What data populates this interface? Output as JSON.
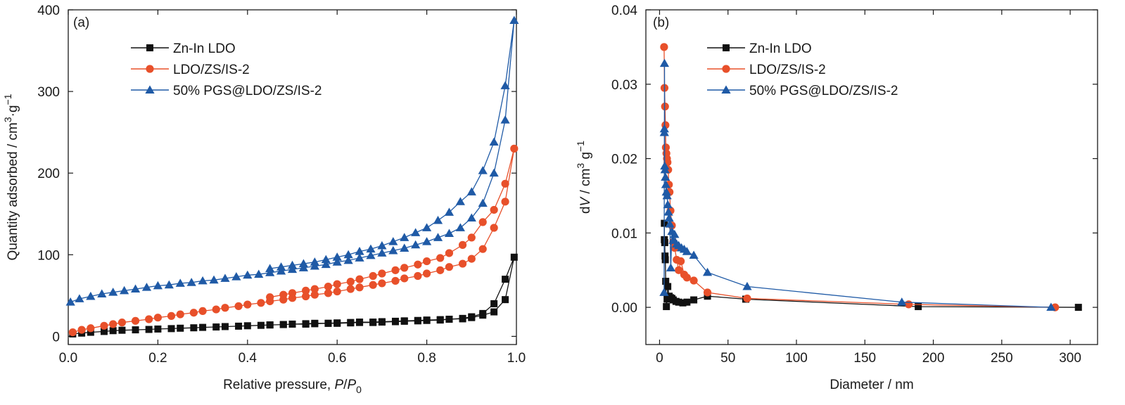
{
  "colors": {
    "black": "#111111",
    "orange": "#E8502A",
    "blue": "#1F5AA6",
    "axis": "#1a1a1a"
  },
  "markers": {
    "Zn-In LDO": "square",
    "LDO/ZS/IS-2": "circle",
    "50% PGS@LDO/ZS/IS-2": "triangle"
  },
  "chart_data": [
    {
      "panel": "(a)",
      "type": "line",
      "xlabel_text": "Relative pressure, ",
      "xlabel_var": "P",
      "xlabel_sep": "/",
      "xlabel_var2": "P",
      "xlabel_sub": "0",
      "ylabel_text": "Quantity adsorbed / cm",
      "ylabel_sup1": "3",
      "ylabel_mid": "·g",
      "ylabel_sup2": "−1",
      "xlim": [
        0,
        1.0
      ],
      "ylim": [
        -10,
        400
      ],
      "xticks": [
        0.0,
        0.2,
        0.4,
        0.6,
        0.8,
        1.0
      ],
      "xtick_labels": [
        "0.0",
        "0.2",
        "0.4",
        "0.6",
        "0.8",
        "1.0"
      ],
      "yticks": [
        0,
        100,
        200,
        300,
        400
      ],
      "ytick_labels": [
        "0",
        "100",
        "200",
        "300",
        "400"
      ],
      "legend_position": "top-left",
      "series": [
        {
          "name": "Zn-In LDO",
          "color": "black",
          "marker": "square",
          "x": [
            0.01,
            0.03,
            0.05,
            0.08,
            0.1,
            0.12,
            0.15,
            0.18,
            0.2,
            0.23,
            0.25,
            0.28,
            0.3,
            0.33,
            0.35,
            0.38,
            0.4,
            0.43,
            0.45,
            0.48,
            0.5,
            0.53,
            0.55,
            0.58,
            0.6,
            0.63,
            0.65,
            0.68,
            0.7,
            0.73,
            0.75,
            0.78,
            0.8,
            0.83,
            0.85,
            0.88,
            0.9,
            0.925,
            0.95,
            0.975,
            0.995,
            0.975,
            0.95,
            0.925,
            0.9,
            0.88,
            0.85,
            0.83,
            0.8,
            0.78,
            0.75,
            0.73,
            0.7,
            0.68,
            0.65,
            0.63,
            0.6,
            0.58,
            0.55,
            0.53,
            0.5,
            0.48,
            0.45
          ],
          "y": [
            3,
            4,
            5,
            6,
            7,
            7.5,
            8,
            8.5,
            9,
            9.5,
            10,
            10.5,
            11,
            11.5,
            12,
            12.5,
            13,
            13.5,
            14,
            14.5,
            15,
            15,
            15.5,
            16,
            16,
            16.5,
            17,
            17,
            17.5,
            18,
            18.5,
            19,
            19.5,
            20,
            21,
            22,
            24,
            28,
            40,
            70,
            97,
            45,
            30,
            26,
            23,
            21.5,
            21,
            20.5,
            20,
            19.5,
            19,
            18.5,
            18,
            17.5,
            17.5,
            17,
            16.5,
            16,
            16,
            15.5,
            15,
            14.5,
            14
          ]
        },
        {
          "name": "LDO/ZS/IS-2",
          "color": "orange",
          "marker": "circle",
          "x": [
            0.01,
            0.03,
            0.05,
            0.08,
            0.1,
            0.12,
            0.15,
            0.18,
            0.2,
            0.23,
            0.25,
            0.28,
            0.3,
            0.33,
            0.35,
            0.38,
            0.4,
            0.43,
            0.45,
            0.48,
            0.5,
            0.53,
            0.55,
            0.58,
            0.6,
            0.63,
            0.65,
            0.68,
            0.7,
            0.73,
            0.75,
            0.78,
            0.8,
            0.83,
            0.85,
            0.88,
            0.9,
            0.925,
            0.95,
            0.975,
            0.995,
            0.975,
            0.95,
            0.925,
            0.9,
            0.88,
            0.85,
            0.83,
            0.8,
            0.78,
            0.75,
            0.73,
            0.7,
            0.68,
            0.65,
            0.63,
            0.6,
            0.58,
            0.55,
            0.53,
            0.5,
            0.48,
            0.45
          ],
          "y": [
            5,
            8,
            10,
            13,
            15,
            17,
            19,
            21,
            23,
            25,
            27,
            29,
            31,
            33,
            35,
            37,
            39,
            41,
            43,
            45,
            47,
            49,
            51,
            53,
            55,
            58,
            60,
            63,
            65,
            68,
            71,
            74,
            77,
            81,
            85,
            89,
            95,
            107,
            133,
            165,
            230,
            187,
            155,
            140,
            121,
            112,
            102,
            96,
            92,
            88,
            84,
            81,
            77,
            74,
            70,
            67,
            64,
            61,
            58,
            56,
            53,
            51,
            48
          ]
        },
        {
          "name": "50% PGS@LDO/ZS/IS-2",
          "color": "blue",
          "marker": "triangle",
          "x": [
            0.005,
            0.025,
            0.05,
            0.075,
            0.1,
            0.125,
            0.15,
            0.175,
            0.2,
            0.225,
            0.25,
            0.275,
            0.3,
            0.325,
            0.35,
            0.375,
            0.4,
            0.425,
            0.45,
            0.475,
            0.5,
            0.525,
            0.55,
            0.575,
            0.6,
            0.625,
            0.65,
            0.675,
            0.7,
            0.725,
            0.75,
            0.775,
            0.8,
            0.825,
            0.85,
            0.875,
            0.9,
            0.925,
            0.95,
            0.975,
            0.995,
            0.975,
            0.95,
            0.925,
            0.9,
            0.875,
            0.85,
            0.825,
            0.8,
            0.775,
            0.75,
            0.725,
            0.7,
            0.675,
            0.65,
            0.625,
            0.6,
            0.575,
            0.55,
            0.525,
            0.5,
            0.475,
            0.45
          ],
          "y": [
            42,
            46,
            49,
            52,
            54,
            56,
            58,
            60,
            62,
            63,
            65,
            66,
            68,
            69,
            71,
            73,
            75,
            76,
            78,
            80,
            82,
            84,
            86,
            88,
            91,
            93,
            96,
            99,
            102,
            105,
            108,
            112,
            116,
            121,
            126,
            133,
            145,
            163,
            200,
            265,
            387,
            307,
            238,
            203,
            177,
            165,
            152,
            142,
            133,
            127,
            121,
            116,
            111,
            107,
            104,
            100,
            97,
            94,
            91,
            89,
            87,
            85,
            83
          ]
        }
      ]
    },
    {
      "panel": "(b)",
      "type": "line",
      "xlabel_text": "Diameter / nm",
      "ylabel_pre": "d",
      "ylabel_var": "V",
      "ylabel_text": " / cm",
      "ylabel_sup1": "3",
      "ylabel_mid": " g",
      "ylabel_sup2": "−1",
      "xlim": [
        -10,
        320
      ],
      "ylim": [
        -0.005,
        0.04
      ],
      "xticks": [
        0,
        50,
        100,
        150,
        200,
        250,
        300
      ],
      "xtick_labels": [
        "0",
        "50",
        "100",
        "150",
        "200",
        "250",
        "300"
      ],
      "yticks": [
        0.0,
        0.01,
        0.02,
        0.03,
        0.04
      ],
      "ytick_labels": [
        "0.00",
        "0.01",
        "0.02",
        "0.03",
        "0.04"
      ],
      "legend_position": "top-center",
      "series": [
        {
          "name": "Zn-In LDO",
          "color": "black",
          "marker": "square",
          "x": [
            3.5,
            3.5,
            3.8,
            4.0,
            4.2,
            4.5,
            5.0,
            5.5,
            6.0,
            7.0,
            8.0,
            9.0,
            10.0,
            12.0,
            14.0,
            17.0,
            20.0,
            25.0,
            35.0,
            63.0,
            189.0,
            306.0
          ],
          "y": [
            0.0113,
            0.0091,
            0.0087,
            0.0069,
            0.0064,
            0.0035,
            0.0001,
            0.0011,
            0.0028,
            0.0015,
            0.0013,
            0.0012,
            0.001,
            0.0008,
            0.0007,
            0.0006,
            0.0007,
            0.001,
            0.0015,
            0.0011,
            0.0001,
            0.0
          ]
        },
        {
          "name": "LDO/ZS/IS-2",
          "color": "orange",
          "marker": "circle",
          "x": [
            3.3,
            3.6,
            4.0,
            4.3,
            4.6,
            5.0,
            5.4,
            5.8,
            6.3,
            6.8,
            7.3,
            8.0,
            9.0,
            10.0,
            11.0,
            12.5,
            14.0,
            15.5,
            18.0,
            20.0,
            25.0,
            35.0,
            64.0,
            182.0,
            289.0
          ],
          "y": [
            0.035,
            0.0295,
            0.027,
            0.0245,
            0.0215,
            0.0207,
            0.02,
            0.0195,
            0.0185,
            0.0165,
            0.0155,
            0.013,
            0.011,
            0.0088,
            0.008,
            0.0064,
            0.005,
            0.0062,
            0.0044,
            0.004,
            0.0036,
            0.002,
            0.0012,
            0.0004,
            0.0
          ]
        },
        {
          "name": "50% PGS@LDO/ZS/IS-2",
          "color": "blue",
          "marker": "triangle",
          "x": [
            3.3,
            3.5,
            3.5,
            3.6,
            3.8,
            4.0,
            4.3,
            4.6,
            5.0,
            5.5,
            6.0,
            6.5,
            7.0,
            7.5,
            8.2,
            9.0,
            10.0,
            11.0,
            12.5,
            14.0,
            16.0,
            18.0,
            20.0,
            25.0,
            35.0,
            64.0,
            177.0,
            286.0
          ],
          "y": [
            0.002,
            0.0235,
            0.024,
            0.0328,
            0.019,
            0.0185,
            0.0175,
            0.0165,
            0.0155,
            0.015,
            0.0138,
            0.0128,
            0.012,
            0.0112,
            0.0053,
            0.0102,
            0.009,
            0.0098,
            0.0085,
            0.0083,
            0.008,
            0.0078,
            0.0075,
            0.007,
            0.0047,
            0.0028,
            0.0007,
            0.0
          ]
        }
      ]
    }
  ]
}
